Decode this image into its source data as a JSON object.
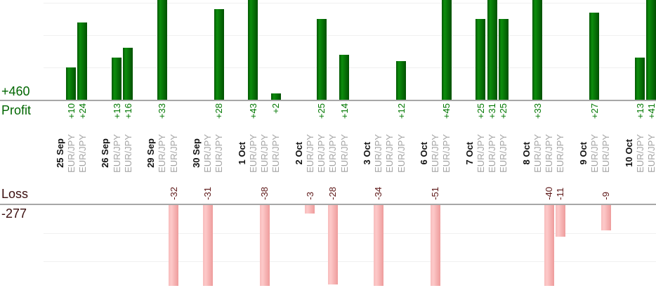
{
  "chart_data": {
    "type": "bar",
    "description": "Per-trade profit and loss bar chart: green bars above the Profit axis, pink bars below the Loss axis, one column per trade grouped by date",
    "profit": {
      "total_label": "+460",
      "title": "Profit",
      "sum": 460
    },
    "loss": {
      "title": "Loss",
      "total_label": "-277",
      "sum": -277
    },
    "value_prefix_positive": "+",
    "gridline_interval": 10,
    "legend": "none",
    "groups": [
      {
        "date": "25 Sep",
        "trades": [
          {
            "instrument": "EUR/JPY",
            "value": 10
          },
          {
            "instrument": "EUR/JPY",
            "value": 24
          }
        ]
      },
      {
        "date": "26 Sep",
        "trades": [
          {
            "instrument": "EUR/JPY",
            "value": 13
          },
          {
            "instrument": "EUR/JPY",
            "value": 16
          }
        ]
      },
      {
        "date": "29 Sep",
        "trades": [
          {
            "instrument": "EUR/JPY",
            "value": 33
          },
          {
            "instrument": "EUR/JPY",
            "value": -32
          }
        ]
      },
      {
        "date": "30 Sep",
        "trades": [
          {
            "instrument": "EUR/JPY",
            "value": -31
          },
          {
            "instrument": "EUR/JPY",
            "value": 28
          }
        ]
      },
      {
        "date": "1 Oct",
        "trades": [
          {
            "instrument": "EUR/JPY",
            "value": 43
          },
          {
            "instrument": "EUR/JPY",
            "value": -38
          },
          {
            "instrument": "EUR/JPY",
            "value": 2
          }
        ]
      },
      {
        "date": "2 Oct",
        "trades": [
          {
            "instrument": "EUR/JPY",
            "value": -3
          },
          {
            "instrument": "EUR/JPY",
            "value": 25
          },
          {
            "instrument": "EUR/JPY",
            "value": -28
          },
          {
            "instrument": "EUR/JPY",
            "value": 14
          }
        ]
      },
      {
        "date": "3 Oct",
        "trades": [
          {
            "instrument": "EUR/JPY",
            "value": -34
          },
          {
            "instrument": "EUR/JPY",
            "value": 0
          },
          {
            "instrument": "EUR/JPY",
            "value": 12
          }
        ]
      },
      {
        "date": "6 Oct",
        "trades": [
          {
            "instrument": "EUR/JPY",
            "value": -51
          },
          {
            "instrument": "EUR/JPY",
            "value": 45
          }
        ]
      },
      {
        "date": "7 Oct",
        "trades": [
          {
            "instrument": "EUR/JPY",
            "value": 25
          },
          {
            "instrument": "EUR/JPY",
            "value": 31
          },
          {
            "instrument": "EUR/JPY",
            "value": 25
          }
        ]
      },
      {
        "date": "8 Oct",
        "trades": [
          {
            "instrument": "EUR/JPY",
            "value": 33
          },
          {
            "instrument": "EUR/JPY",
            "value": -40
          },
          {
            "instrument": "EUR/JPY",
            "value": -11
          }
        ]
      },
      {
        "date": "9 Oct",
        "trades": [
          {
            "instrument": "EUR/JPY",
            "value": 27
          },
          {
            "instrument": "EUR/JPY",
            "value": -9
          }
        ]
      },
      {
        "date": "10 Oct",
        "trades": [
          {
            "instrument": "EUR/JPY",
            "value": 13
          },
          {
            "instrument": "EUR/JPY",
            "value": 41
          }
        ]
      }
    ],
    "colors": {
      "profit_text": "#006600",
      "profit_value_text": "#007700",
      "loss_text": "#3a0d0d",
      "loss_value_text": "#5c1616",
      "date_text": "#111111",
      "instrument_text": "#a3a3a3",
      "axis_line": "#a7a7a7",
      "gridline": "#f0f0f0",
      "profit_bar_gradient": [
        "#045704",
        "#0c8e0c",
        "#015001"
      ],
      "loss_bar_gradient": [
        "#f8bcbc",
        "#fdc9c9",
        "#ee9c9c"
      ]
    }
  }
}
